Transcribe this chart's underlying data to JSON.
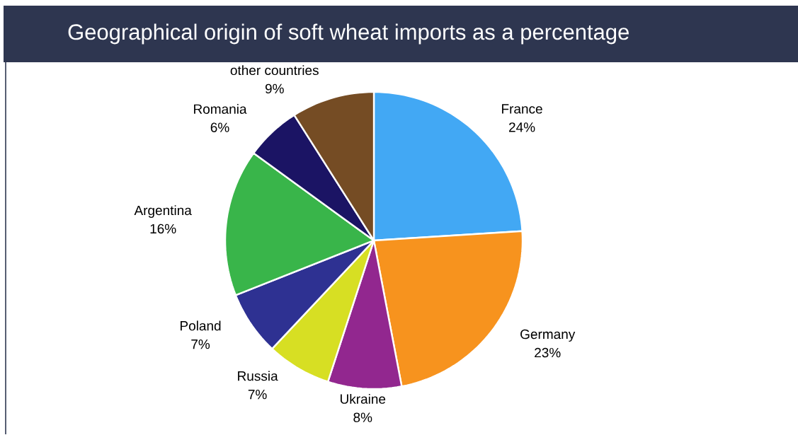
{
  "chart_data": {
    "type": "pie",
    "title": "Geographical origin of soft wheat imports as a percentage",
    "categories": [
      "France",
      "Germany",
      "Ukraine",
      "Russia",
      "Poland",
      "Argentina",
      "Romania",
      "other countries"
    ],
    "values": [
      24,
      23,
      8,
      7,
      7,
      16,
      6,
      9
    ],
    "value_labels": [
      "24%",
      "23%",
      "8%",
      "7%",
      "7%",
      "16%",
      "6%",
      "9%"
    ],
    "colors": [
      "#42a8f4",
      "#f7931e",
      "#92278f",
      "#d7df23",
      "#2e3192",
      "#39b54a",
      "#1b1464",
      "#754c24"
    ]
  }
}
